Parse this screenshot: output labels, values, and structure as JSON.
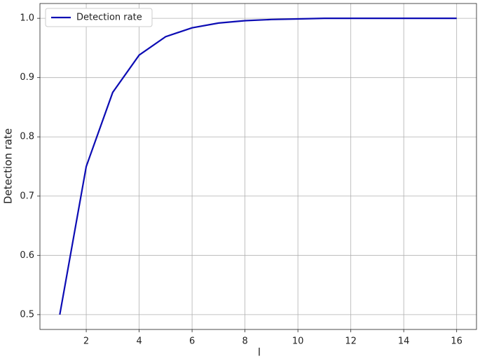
{
  "chart_data": {
    "type": "line",
    "x_label": "l",
    "y_label": "Detection rate",
    "x": [
      1,
      2,
      3,
      4,
      5,
      6,
      7,
      8,
      9,
      10,
      11,
      12,
      13,
      14,
      15,
      16
    ],
    "series": [
      {
        "name": "Detection rate",
        "color": "#0c0cb4",
        "values": [
          0.5,
          0.75,
          0.875,
          0.938,
          0.969,
          0.984,
          0.992,
          0.996,
          0.998,
          0.999,
          1.0,
          1.0,
          1.0,
          1.0,
          1.0,
          1.0
        ]
      }
    ],
    "xlim": [
      0.25,
      16.75
    ],
    "ylim": [
      0.475,
      1.025
    ],
    "xticks": [
      2,
      4,
      6,
      8,
      10,
      12,
      14,
      16
    ],
    "yticks": [
      0.5,
      0.6,
      0.7,
      0.8,
      0.9,
      {
        "value": 1,
        "label": "1.0"
      }
    ],
    "grid": true,
    "legend": "upper left"
  }
}
